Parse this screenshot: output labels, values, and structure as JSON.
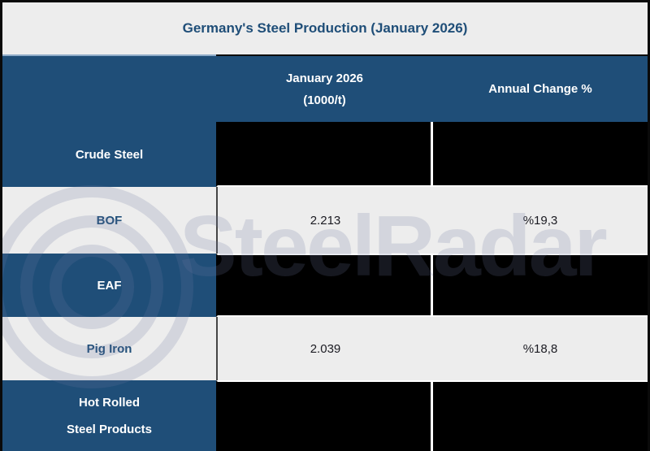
{
  "title": "Germany's Steel Production (January 2026)",
  "watermark": {
    "text": "SteelRadar",
    "logo_icon": "radar-rings-icon"
  },
  "header": {
    "col1": "January 2026\n(1000/t)",
    "col2": "Annual Change %"
  },
  "rows": [
    {
      "label": "Crude Steel",
      "value": "",
      "change": "",
      "redacted": true
    },
    {
      "label": "BOF",
      "value": "2.213",
      "change": "%19,3",
      "redacted": false
    },
    {
      "label": "EAF",
      "value": "",
      "change": "",
      "redacted": true
    },
    {
      "label": "Pig Iron",
      "value": "2.039",
      "change": "%18,8",
      "redacted": false
    },
    {
      "label": "Hot Rolled\nSteel Products",
      "value": "",
      "change": "",
      "redacted": true
    }
  ],
  "chart_data": {
    "type": "table",
    "title": "Germany's Steel Production (January 2026)",
    "columns": [
      "",
      "January 2026 (1000/t)",
      "Annual Change %"
    ],
    "rows": [
      [
        "Crude Steel",
        null,
        null
      ],
      [
        "BOF",
        "2.213",
        "%19,3"
      ],
      [
        "EAF",
        null,
        null
      ],
      [
        "Pig Iron",
        "2.039",
        "%18,8"
      ],
      [
        "Hot Rolled Steel Products",
        null,
        null
      ]
    ],
    "notes": "null cells are blacked-out (redacted) in the image; watermark text SteelRadar overlays the table"
  },
  "colors": {
    "accent_blue": "#1F4E78",
    "row_light": "#EDEDED",
    "redacted_cell": "#000000",
    "header_text": "#FFFFFF",
    "value_text": "#1B1B22",
    "border_black": "#0D0D0D",
    "divider_highlight": "#8FABC8",
    "watermark": "rgba(108,120,160,0.20)"
  }
}
